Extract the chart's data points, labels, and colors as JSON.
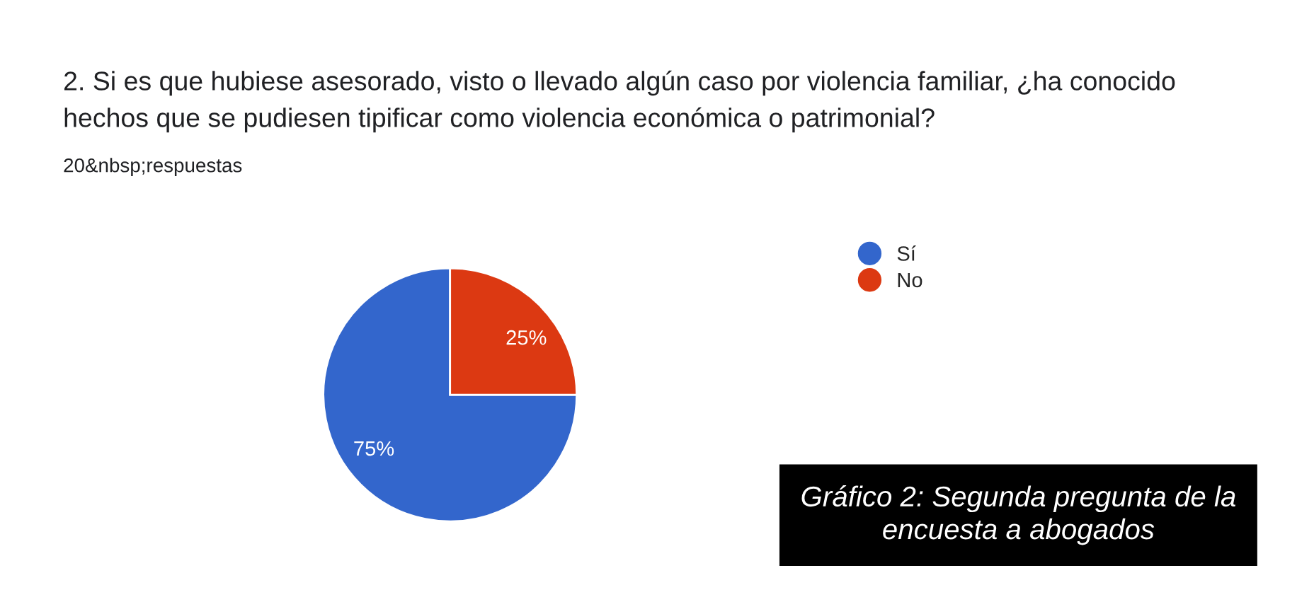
{
  "chart_data": {
    "type": "pie",
    "title": "2. Si es que hubiese asesorado, visto o llevado algún caso por violencia familiar, ¿ha conocido hechos que se pudiesen tipificar como violencia económica o patrimonial?",
    "subtitle": "20&nbsp;respuestas",
    "categories": [
      "Sí",
      "No"
    ],
    "values": [
      75,
      25
    ],
    "colors": [
      "#3366cc",
      "#dc3912"
    ],
    "data_labels": true,
    "value_labels": [
      "75%",
      "25%"
    ],
    "legend": "top right",
    "annotations": [
      "Gráfico 2: Segunda pregunta de la encuesta a abogados"
    ]
  }
}
